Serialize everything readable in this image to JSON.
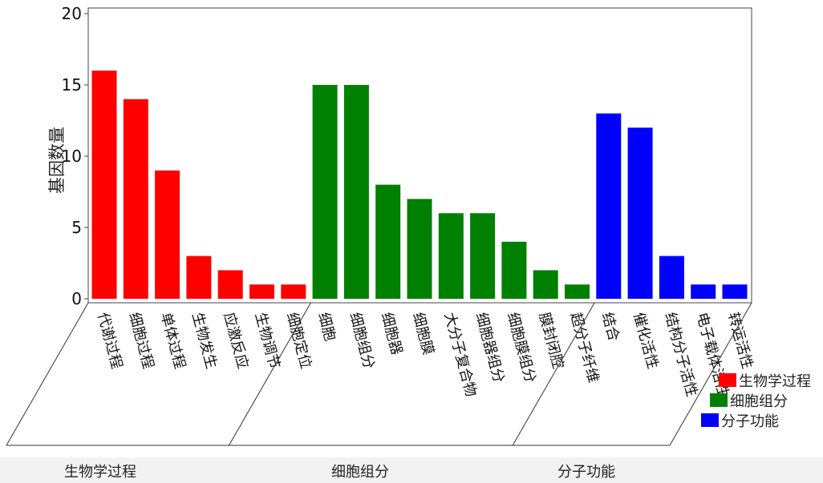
{
  "chart_data": {
    "type": "bar",
    "ylabel": "基因数量",
    "ylim": [
      0,
      20
    ],
    "yticks": [
      0,
      5,
      10,
      15,
      20
    ],
    "grid": false,
    "legend_position": "bottom-right",
    "groups": [
      {
        "name": "生物学过程",
        "color": "#ff0000",
        "categories": [
          "代谢过程",
          "细胞过程",
          "单体过程",
          "生物发生",
          "应激反应",
          "生物调节",
          "细胞定位"
        ],
        "values": [
          16,
          14,
          9,
          3,
          2,
          1,
          1
        ]
      },
      {
        "name": "细胞组分",
        "color": "#008000",
        "categories": [
          "细胞",
          "细胞组分",
          "细胞器",
          "细胞膜",
          "大分子复合物",
          "细胞器组分",
          "细胞膜组分",
          "膜封闭腔",
          "超分子纤维"
        ],
        "values": [
          15,
          15,
          8,
          7,
          6,
          6,
          4,
          2,
          1
        ]
      },
      {
        "name": "分子功能",
        "color": "#0000ff",
        "categories": [
          "结合",
          "催化活性",
          "结构分子活性",
          "电子载体活性",
          "转运活性"
        ],
        "values": [
          13,
          12,
          3,
          1,
          1
        ]
      }
    ]
  }
}
